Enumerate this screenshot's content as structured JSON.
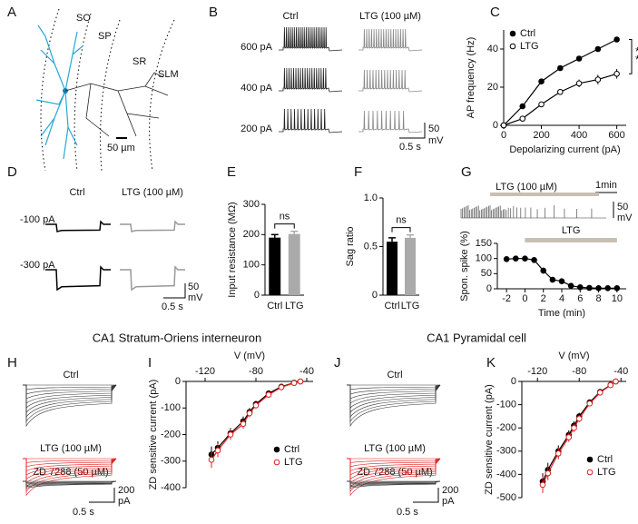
{
  "panel_labels": [
    "A",
    "B",
    "C",
    "D",
    "E",
    "F",
    "G",
    "H",
    "I",
    "J",
    "K"
  ],
  "panel_a": {
    "regions": [
      "SO",
      "SP",
      "SR",
      "SLM"
    ],
    "scale": "50 µm"
  },
  "panel_b": {
    "conditions": [
      "Ctrl",
      "LTG (100 µM)"
    ],
    "currents": [
      "600 pA",
      "400 pA",
      "200 pA"
    ],
    "scale_y": "50",
    "scale_y_unit": "mV",
    "scale_x": "0.5 s"
  },
  "panel_d": {
    "conditions": [
      "Ctrl",
      "LTG (100 µM)"
    ],
    "currents": [
      "-100 pA",
      "-300 pA"
    ],
    "scale_y": "50",
    "scale_y_unit": "mV",
    "scale_x": "0.5 s"
  },
  "panel_g": {
    "drug": "LTG (100 µM)",
    "scale_x": "1min",
    "scale_y": "50",
    "scale_y_unit": "mV"
  },
  "section_titles": [
    "CA1 Stratum-Oriens interneuron",
    "CA1 Pyramidal cell"
  ],
  "panel_h": {
    "traces": [
      "Ctrl",
      "LTG (100 µM)",
      "ZD 7288 (50 µM)"
    ],
    "scale_y": "200",
    "scale_y_unit": "pA",
    "scale_x": "0.5 s"
  },
  "panel_j": {
    "traces": [
      "Ctrl",
      "LTG (100 µM)",
      "ZD 7288 (50 µM)"
    ],
    "scale_y": "200",
    "scale_y_unit": "pA",
    "scale_x": "0.5 s"
  },
  "chart_data": [
    {
      "type": "line",
      "xlabel": "Depolarizing current (pA)",
      "ylabel": "AP frequency (Hz)",
      "x": [
        0,
        100,
        200,
        300,
        400,
        500,
        600
      ],
      "xlim": [
        0,
        650
      ],
      "xticks": [
        0,
        200,
        400,
        600
      ],
      "ylim": [
        0,
        50
      ],
      "yticks": [
        0,
        20,
        40
      ],
      "series": [
        {
          "name": "Ctrl",
          "color": "#000000",
          "marker": "filled",
          "values": [
            0,
            10,
            23,
            30,
            35,
            40,
            45
          ],
          "errors": [
            0,
            0.5,
            0.8,
            1,
            1,
            1,
            1.2
          ]
        },
        {
          "name": "LTG",
          "color": "#000000",
          "marker": "open",
          "values": [
            0,
            3.5,
            11,
            17.5,
            22,
            24,
            27
          ],
          "errors": [
            0,
            0.6,
            1,
            1.5,
            2,
            2.5,
            2.5
          ]
        }
      ],
      "legend": "upper left",
      "significance": [
        "*",
        "*"
      ]
    },
    {
      "type": "bar",
      "ylabel": "Input resistance (MΩ)",
      "categories": [
        "Ctrl",
        "LTG"
      ],
      "values": [
        190,
        202
      ],
      "errors": [
        10,
        9
      ],
      "colors": [
        "#000000",
        "#aaaaaa"
      ],
      "ylim": [
        0,
        300
      ],
      "yticks": [
        0,
        100,
        200,
        300
      ],
      "significance": "ns"
    },
    {
      "type": "bar",
      "ylabel": "Sag ratio",
      "categories": [
        "Ctrl",
        "LTG"
      ],
      "values": [
        0.55,
        0.59
      ],
      "errors": [
        0.04,
        0.03
      ],
      "colors": [
        "#000000",
        "#aaaaaa"
      ],
      "ylim": [
        0,
        1
      ],
      "yticks": [
        0,
        0.5,
        {
          "value": 1,
          "label": "1.0"
        }
      ],
      "significance": "ns"
    },
    {
      "type": "line",
      "xlabel": "Time (min)",
      "ylabel": "Spon. spike (%)",
      "x": [
        -2,
        -1,
        0,
        1,
        2,
        3,
        4,
        5,
        6,
        7,
        8,
        9,
        10
      ],
      "xlim": [
        -3,
        11
      ],
      "xticks": [
        -2,
        0,
        2,
        4,
        6,
        8,
        10
      ],
      "ylim": [
        0,
        150
      ],
      "yticks": [
        0,
        50,
        100,
        150
      ],
      "series": [
        {
          "color": "#000000",
          "marker": "filled",
          "values": [
            98,
            100,
            100,
            95,
            60,
            30,
            25,
            10,
            5,
            3,
            2,
            2,
            2
          ],
          "errors": [
            3,
            2,
            2,
            5,
            10,
            8,
            7,
            4,
            3,
            2,
            1,
            1,
            1
          ]
        }
      ],
      "treatment": {
        "label": "LTG",
        "start": 0,
        "end": 10
      }
    },
    {
      "type": "line",
      "xlabel": "V (mV)",
      "ylabel": "ZD sensitive current (pA)",
      "x_axis_position": "top",
      "x": [
        -115,
        -110,
        -100,
        -90,
        -85,
        -80,
        -70,
        -60,
        -50,
        -45
      ],
      "xlim": [
        -135,
        -35
      ],
      "xticks": [
        -120,
        -80,
        -40
      ],
      "ylim": [
        -400,
        0
      ],
      "yticks": [
        0,
        -100,
        -200,
        -300,
        -400
      ],
      "series": [
        {
          "name": "Ctrl",
          "color": "#000000",
          "marker": "filled",
          "values": [
            -275,
            -250,
            -195,
            -150,
            -115,
            -85,
            -45,
            -20,
            -5,
            0
          ],
          "errors": [
            30,
            25,
            20,
            18,
            15,
            12,
            8,
            5,
            3,
            2
          ]
        },
        {
          "name": "LTG",
          "color": "#e02020",
          "marker": "open",
          "values": [
            -295,
            -260,
            -200,
            -160,
            -120,
            -90,
            -50,
            -22,
            -6,
            0
          ],
          "errors": [
            30,
            25,
            20,
            18,
            15,
            12,
            8,
            5,
            3,
            2
          ]
        }
      ],
      "legend": "lower right"
    },
    {
      "type": "line",
      "xlabel": "V (mV)",
      "ylabel": "ZD sensitive current (pA)",
      "x_axis_position": "top",
      "x": [
        -115,
        -110,
        -100,
        -90,
        -85,
        -80,
        -70,
        -60,
        -50,
        -45
      ],
      "xlim": [
        -135,
        -35
      ],
      "xticks": [
        -120,
        -80,
        -40
      ],
      "ylim": [
        -500,
        0
      ],
      "yticks": [
        0,
        -100,
        -200,
        -300,
        -400,
        -500
      ],
      "series": [
        {
          "name": "Ctrl",
          "color": "#000000",
          "marker": "filled",
          "values": [
            -430,
            -380,
            -300,
            -230,
            -190,
            -150,
            -90,
            -45,
            -15,
            0
          ],
          "errors": [
            35,
            30,
            25,
            20,
            18,
            15,
            10,
            6,
            4,
            2
          ]
        },
        {
          "name": "LTG",
          "color": "#e02020",
          "marker": "open",
          "values": [
            -445,
            -395,
            -310,
            -240,
            -200,
            -160,
            -95,
            -48,
            -16,
            0
          ],
          "errors": [
            35,
            30,
            25,
            20,
            18,
            15,
            10,
            6,
            4,
            2
          ]
        }
      ],
      "legend": "lower right"
    }
  ]
}
